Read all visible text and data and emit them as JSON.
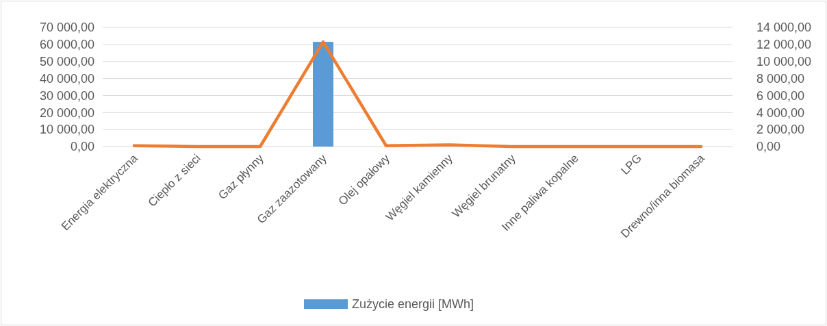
{
  "chart_data": {
    "type": "bar",
    "categories": [
      "Energia elektryczna",
      "Ciepło z sieci",
      "Gaz płynny",
      "Gaz zaazotowany",
      "Olej opałowy",
      "Węgiel kamienny",
      "Węgiel brunatny",
      "Inne paliwa kopalne",
      "LPG",
      "Drewno/inna biomasa"
    ],
    "series": [
      {
        "name": "Zużycie energii [MWh]",
        "color": "#5b9bd5",
        "values": [
          0,
          0,
          0,
          61500,
          0,
          0,
          0,
          0,
          0,
          0
        ]
      },
      {
        "type": "line",
        "axis": "y2",
        "color": "#ed7d31",
        "values": [
          100,
          0,
          0,
          12300,
          100,
          200,
          0,
          0,
          0,
          0
        ]
      }
    ],
    "ylim": [
      0,
      70000
    ],
    "yticks": [
      {
        "value": 0,
        "label": "0,00"
      },
      {
        "value": 10000,
        "label": "10 000,00"
      },
      {
        "value": 20000,
        "label": "20 000,00"
      },
      {
        "value": 30000,
        "label": "30 000,00"
      },
      {
        "value": 40000,
        "label": "40 000,00"
      },
      {
        "value": 50000,
        "label": "50 000,00"
      },
      {
        "value": 60000,
        "label": "60 000,00"
      },
      {
        "value": 70000,
        "label": "70 000,00"
      }
    ],
    "y2lim": [
      0,
      14000
    ],
    "y2ticks": [
      {
        "value": 0,
        "label": "0,00"
      },
      {
        "value": 2000,
        "label": "2 000,00"
      },
      {
        "value": 4000,
        "label": "4 000,00"
      },
      {
        "value": 6000,
        "label": "6 000,00"
      },
      {
        "value": 8000,
        "label": "8 000,00"
      },
      {
        "value": 10000,
        "label": "10 000,00"
      },
      {
        "value": 12000,
        "label": "12 000,00"
      },
      {
        "value": 14000,
        "label": "14 000,00"
      }
    ],
    "grid": "y",
    "legend": "bottom"
  }
}
